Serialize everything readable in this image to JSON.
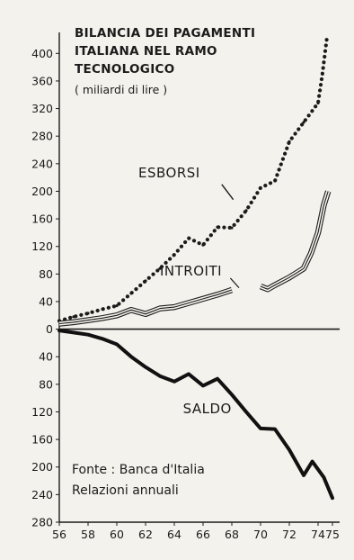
{
  "chart_data": {
    "type": "line",
    "title": "BILANCIA DEI PAGAMENTI ITALIANA NEL RAMO TECNOLOGICO",
    "title_lines": [
      "BILANCIA DEI PAGAMENTI",
      "ITALIANA NEL RAMO",
      "TECNOLOGICO"
    ],
    "subtitle": "( miliardi di lire )",
    "source_lines": [
      "Fonte : Banca d'Italia",
      "Relazioni annuali"
    ],
    "x": {
      "ticks": [
        56,
        58,
        60,
        62,
        64,
        66,
        68,
        70,
        72,
        74,
        75
      ],
      "tick_labels": [
        "56",
        "58",
        "60",
        "62",
        "64",
        "66",
        "68",
        "70",
        "72",
        "74",
        "75"
      ],
      "lim": [
        56,
        75
      ]
    },
    "y": {
      "ticks": [
        400,
        360,
        320,
        280,
        240,
        200,
        160,
        120,
        80,
        40,
        0,
        -40,
        -80,
        -120,
        -160,
        -200,
        -240,
        -280
      ],
      "tick_labels": [
        "400",
        "360",
        "320",
        "280",
        "240",
        "200",
        "160",
        "120",
        "80",
        "40",
        "0",
        "40",
        "80",
        "120",
        "160",
        "200",
        "240",
        "280"
      ],
      "lim": [
        -280,
        420
      ],
      "note": "values below zero are printed without a minus sign"
    },
    "grid": false,
    "series": [
      {
        "name": "ESBORSI",
        "style": "dotted",
        "color": "#1b1b1b",
        "label_at": [
          61.5,
          220
        ],
        "points": [
          [
            56,
            12
          ],
          [
            57,
            18
          ],
          [
            58,
            23
          ],
          [
            59,
            29
          ],
          [
            60,
            34
          ],
          [
            61,
            52
          ],
          [
            62,
            70
          ],
          [
            63,
            88
          ],
          [
            64,
            108
          ],
          [
            65,
            132
          ],
          [
            66,
            122
          ],
          [
            67,
            148
          ],
          [
            68,
            147
          ],
          [
            69,
            172
          ],
          [
            70,
            205
          ],
          [
            71,
            215
          ],
          [
            72,
            272
          ],
          [
            73,
            300
          ],
          [
            74,
            328
          ],
          [
            74.3,
            370
          ],
          [
            74.6,
            420
          ]
        ]
      },
      {
        "name": "INTROITI",
        "style": "triple-line",
        "color": "#1b1b1b",
        "label_at": [
          63,
          78
        ],
        "segments": [
          [
            [
              56,
              8
            ],
            [
              57,
              10
            ],
            [
              58,
              13
            ],
            [
              59,
              16
            ],
            [
              60,
              20
            ],
            [
              61,
              28
            ],
            [
              62,
              22
            ],
            [
              63,
              30
            ],
            [
              64,
              32
            ],
            [
              65,
              38
            ],
            [
              66,
              44
            ],
            [
              67,
              50
            ],
            [
              68,
              57
            ]
          ],
          [
            [
              70,
              62
            ],
            [
              70.5,
              58
            ],
            [
              71,
              64
            ],
            [
              72,
              75
            ],
            [
              73,
              88
            ],
            [
              73.5,
              110
            ],
            [
              74,
              140
            ],
            [
              74.4,
              180
            ],
            [
              74.7,
              200
            ]
          ]
        ]
      },
      {
        "name": "SALDO",
        "style": "thick",
        "color": "#111111",
        "label_at": [
          64.6,
          -122
        ],
        "points": [
          [
            56,
            -2
          ],
          [
            57,
            -5
          ],
          [
            58,
            -8
          ],
          [
            59,
            -14
          ],
          [
            60,
            -22
          ],
          [
            61,
            -40
          ],
          [
            62,
            -55
          ],
          [
            63,
            -68
          ],
          [
            64,
            -76
          ],
          [
            65,
            -65
          ],
          [
            66,
            -82
          ],
          [
            67,
            -72
          ],
          [
            68,
            -95
          ],
          [
            69,
            -120
          ],
          [
            70,
            -144
          ],
          [
            71,
            -145
          ],
          [
            72,
            -175
          ],
          [
            73,
            -212
          ],
          [
            73.6,
            -192
          ],
          [
            74.4,
            -215
          ],
          [
            75,
            -245
          ]
        ]
      }
    ]
  }
}
